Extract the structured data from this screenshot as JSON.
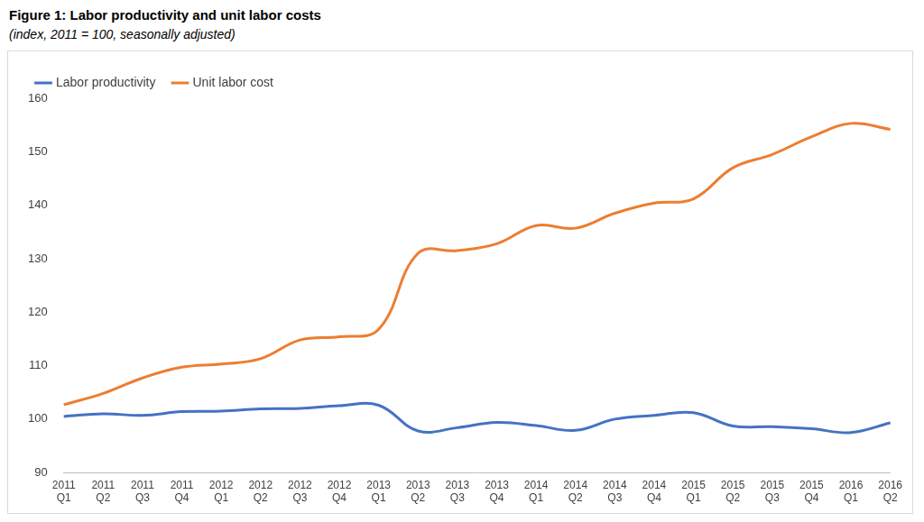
{
  "chart_data": {
    "type": "line",
    "title": "Figure 1: Labor productivity and unit labor costs",
    "subtitle": "(index, 2011 = 100, seasonally adjusted)",
    "categories": [
      "2011 Q1",
      "2011 Q2",
      "2011 Q3",
      "2011 Q4",
      "2012 Q1",
      "2012 Q2",
      "2012 Q3",
      "2012 Q4",
      "2013 Q1",
      "2013 Q2",
      "2013 Q3",
      "2013 Q4",
      "2014 Q1",
      "2014 Q2",
      "2014 Q3",
      "2014 Q4",
      "2015 Q1",
      "2015 Q2",
      "2015 Q3",
      "2015 Q4",
      "2016 Q1",
      "2016 Q2"
    ],
    "series": [
      {
        "name": "Labor productivity",
        "color": "#4472c4",
        "marker": "none",
        "values": [
          100.5,
          101,
          100.7,
          101.4,
          101.5,
          101.9,
          102,
          102.5,
          102.6,
          97.8,
          98.4,
          99.4,
          98.8,
          97.9,
          100,
          100.7,
          101.2,
          98.7,
          98.6,
          98.2,
          97.5,
          99.3
        ]
      },
      {
        "name": "Unit labor cost",
        "color": "#ed7d31",
        "marker": "none",
        "values": [
          102.7,
          104.8,
          107.7,
          109.7,
          110.3,
          111.3,
          114.8,
          115.4,
          116.8,
          131,
          131.5,
          132.8,
          136.2,
          135.7,
          138.5,
          140.4,
          141.2,
          147,
          149.5,
          152.8,
          155.3,
          154.2
        ]
      }
    ],
    "ylim": [
      90,
      160
    ],
    "yticks": [
      90,
      100,
      110,
      120,
      130,
      140,
      150,
      160
    ],
    "grid": false,
    "legend": "top"
  }
}
